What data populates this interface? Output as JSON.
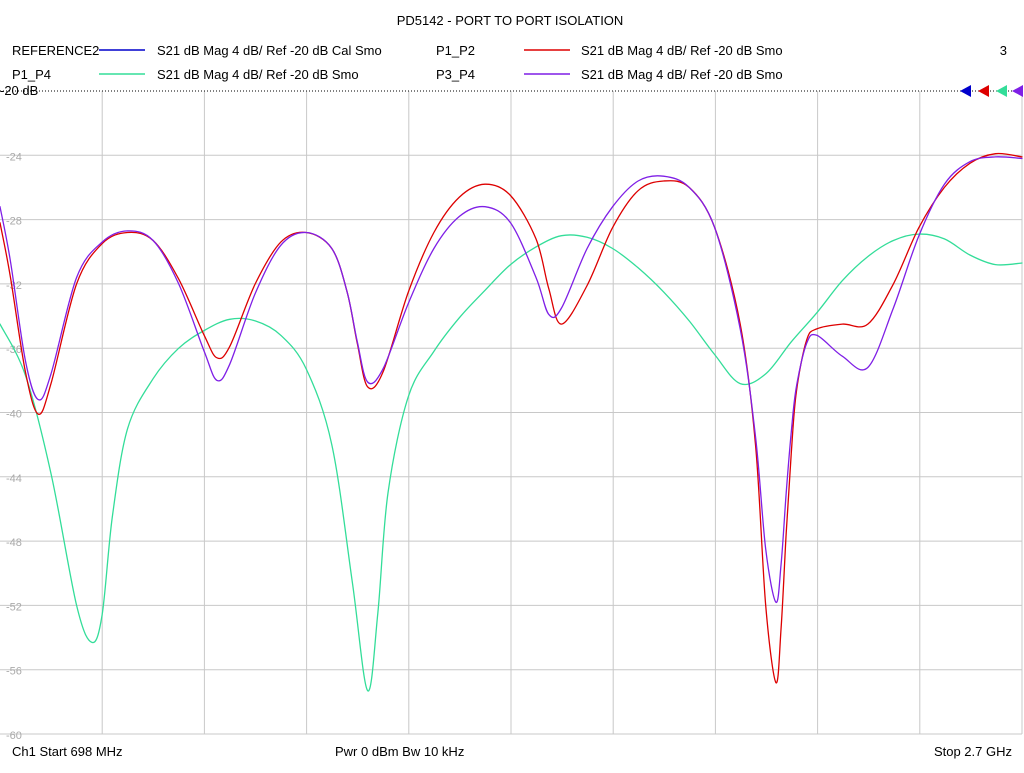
{
  "chart_data": {
    "type": "line",
    "title": "PD5142 - PORT TO PORT ISOLATION",
    "xlabel": "",
    "ylabel": "",
    "x_start_mhz": 698,
    "x_stop_mhz": 2700,
    "ylim": [
      -60,
      -20
    ],
    "y_ticks": [
      "-20 dB",
      "-24",
      "-28",
      "-32",
      "-36",
      "-40",
      "-44",
      "-48",
      "-52",
      "-56",
      "-60"
    ],
    "grid": true,
    "legend": [
      {
        "name": "REFERENCE2",
        "spec": "S21  dB Mag  4 dB/ Ref -20 dB  Cal Smo",
        "color": "#0000cc"
      },
      {
        "name": "P1_P2",
        "spec": "S21  dB Mag  4 dB/ Ref -20 dB  Smo",
        "color": "#dd0000"
      },
      {
        "name": "P1_P4",
        "spec": "S21  dB Mag  4 dB/ Ref -20 dB  Smo",
        "color": "#33dd99"
      },
      {
        "name": "P3_P4",
        "spec": "S21  dB Mag  4 dB/ Ref -20 dB  Smo",
        "color": "#7f1fe6"
      }
    ],
    "marker_count": "3",
    "series": [
      {
        "name": "P1_P4",
        "color": "#33dd99",
        "x": [
          698,
          748,
          798,
          848,
          878,
          898,
          918,
          948,
          998,
          1048,
          1098,
          1148,
          1198,
          1248,
          1298,
          1348,
          1388,
          1418,
          1438,
          1458,
          1498,
          1548,
          1598,
          1648,
          1698,
          1748,
          1798,
          1848,
          1898,
          1948,
          1998,
          2048,
          2098,
          2148,
          2198,
          2248,
          2298,
          2348,
          2398,
          2448,
          2498,
          2548,
          2598,
          2648,
          2700
        ],
        "values": [
          -34.5,
          -37.7,
          -43.8,
          -52,
          -54.3,
          -52.6,
          -46.5,
          -41,
          -37.9,
          -36,
          -34.9,
          -34.2,
          -34.3,
          -35.2,
          -37.3,
          -42,
          -50.5,
          -57.3,
          -52.5,
          -45,
          -39,
          -36.2,
          -34.1,
          -32.4,
          -30.8,
          -29.7,
          -29,
          -29.1,
          -29.8,
          -31,
          -32.5,
          -34.3,
          -36.4,
          -38.2,
          -37.6,
          -35.6,
          -33.8,
          -31.8,
          -30.3,
          -29.3,
          -28.9,
          -29.2,
          -30.2,
          -30.8,
          -30.7
        ]
      },
      {
        "name": "P1_P2",
        "color": "#dd0000",
        "x": [
          698,
          718,
          748,
          773,
          798,
          848,
          898,
          948,
          998,
          1048,
          1098,
          1123,
          1148,
          1198,
          1248,
          1298,
          1348,
          1378,
          1398,
          1418,
          1448,
          1498,
          1548,
          1598,
          1648,
          1698,
          1748,
          1773,
          1798,
          1848,
          1898,
          1948,
          1998,
          2048,
          2098,
          2148,
          2178,
          2198,
          2218,
          2228,
          2238,
          2248,
          2258,
          2278,
          2298,
          2348,
          2398,
          2448,
          2498,
          2548,
          2598,
          2648,
          2700
        ],
        "values": [
          -28.2,
          -31.5,
          -37.5,
          -40.1,
          -38.2,
          -32,
          -29.5,
          -28.8,
          -29.3,
          -31.7,
          -35.2,
          -36.6,
          -35.9,
          -32,
          -29.4,
          -28.8,
          -29.8,
          -32.5,
          -35.7,
          -38.4,
          -37.5,
          -32.5,
          -28.8,
          -26.6,
          -25.8,
          -26.5,
          -29.2,
          -32.3,
          -34.5,
          -32.1,
          -28.5,
          -26.2,
          -25.6,
          -26,
          -28.5,
          -34.5,
          -42,
          -52,
          -56.8,
          -53.5,
          -47.5,
          -42.5,
          -38.7,
          -35.5,
          -34.8,
          -34.5,
          -34.5,
          -32,
          -28.5,
          -26,
          -24.5,
          -23.9,
          -24.1
        ]
      },
      {
        "name": "P3_P4",
        "color": "#7f1fe6",
        "x": [
          698,
          718,
          748,
          773,
          798,
          848,
          898,
          948,
          998,
          1048,
          1098,
          1123,
          1148,
          1198,
          1248,
          1298,
          1348,
          1378,
          1398,
          1418,
          1448,
          1498,
          1548,
          1598,
          1648,
          1698,
          1748,
          1773,
          1798,
          1848,
          1898,
          1948,
          1998,
          2048,
          2098,
          2148,
          2178,
          2198,
          2218,
          2228,
          2238,
          2248,
          2258,
          2278,
          2298,
          2348,
          2398,
          2448,
          2498,
          2548,
          2598,
          2648,
          2700
        ],
        "values": [
          -27.2,
          -30.5,
          -36.8,
          -39.2,
          -37.6,
          -31.6,
          -29.4,
          -28.7,
          -29.3,
          -32,
          -36.2,
          -38,
          -37,
          -32.6,
          -29.6,
          -28.8,
          -29.8,
          -32.5,
          -35.6,
          -38.1,
          -37.3,
          -33.2,
          -29.8,
          -27.8,
          -27.2,
          -28.2,
          -31.6,
          -33.9,
          -33.5,
          -29.8,
          -27.2,
          -25.6,
          -25.3,
          -26,
          -28.5,
          -34.8,
          -41.5,
          -48.5,
          -51.8,
          -49.5,
          -45,
          -41.2,
          -38.4,
          -35.7,
          -35.2,
          -36.5,
          -37.2,
          -33.5,
          -29,
          -25.8,
          -24.4,
          -24.1,
          -24.2
        ]
      }
    ]
  },
  "footer": {
    "start": "Ch1  Start  698 MHz",
    "power": "Pwr  0 dBm  Bw  10 kHz",
    "stop": "Stop  2.7 GHz"
  }
}
